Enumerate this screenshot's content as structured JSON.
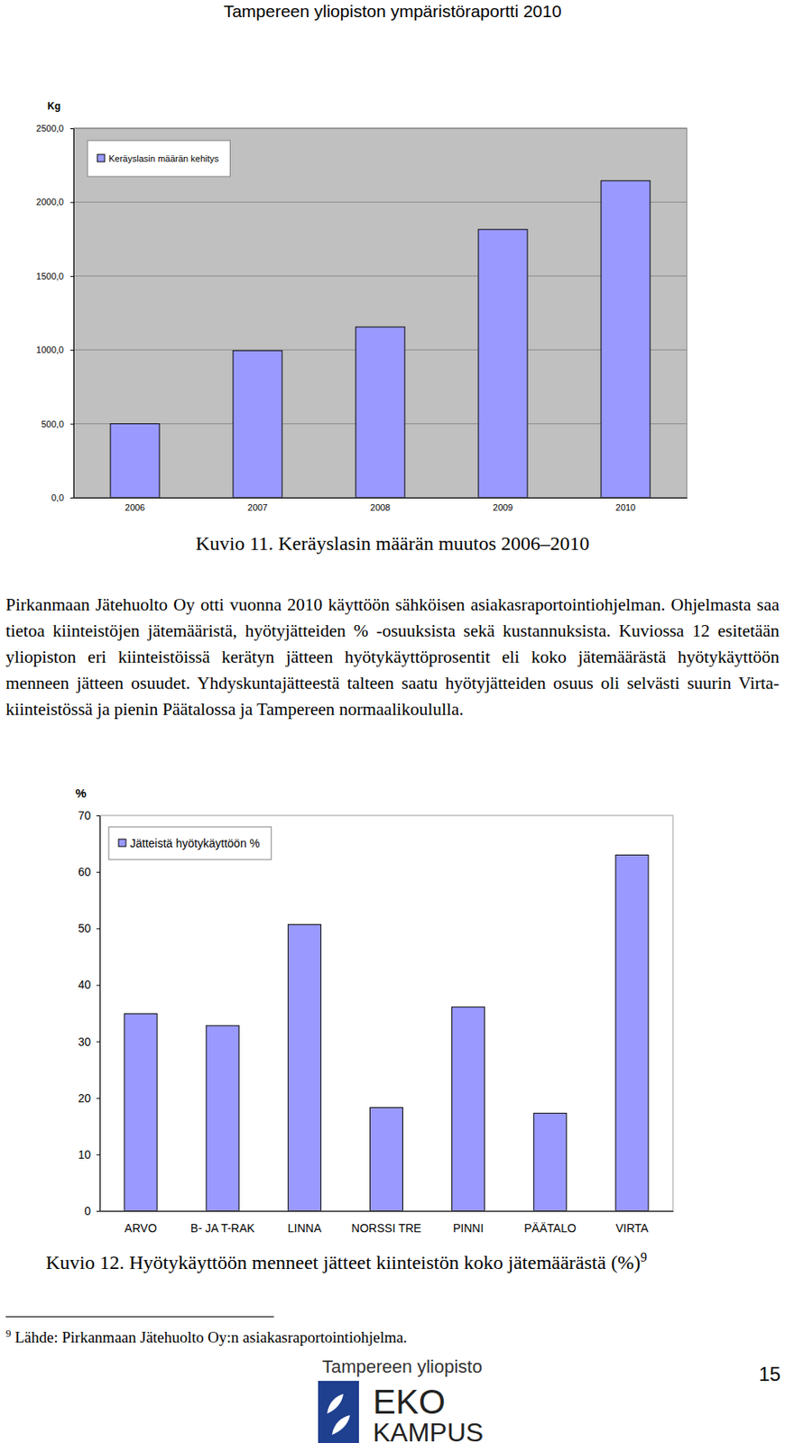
{
  "header": {
    "title": "Tampereen yliopiston ympäristöraportti 2010"
  },
  "chart_data": [
    {
      "type": "bar",
      "y_label": "Kg",
      "categories": [
        "2006",
        "2007",
        "2008",
        "2009",
        "2010"
      ],
      "series": [
        {
          "name": "Keräyslasin määrän kehitys",
          "color": "#9999ff",
          "values": [
            500,
            995,
            1155,
            1815,
            2145
          ]
        }
      ],
      "ylim": [
        0,
        2500
      ],
      "yticks": [
        {
          "value": 0,
          "label": "0,0"
        },
        {
          "value": 500,
          "label": "500,0"
        },
        {
          "value": 1000,
          "label": "1000,0"
        },
        {
          "value": 1500,
          "label": "1500,0"
        },
        {
          "value": 2000,
          "label": "2000,0"
        },
        {
          "value": 2500,
          "label": "2500,0"
        }
      ],
      "grid": true,
      "legend": "top-left"
    },
    {
      "type": "bar",
      "y_label": "%",
      "categories": [
        "ARVO",
        "B- JA T-RAK",
        "LINNA",
        "NORSSI TRE",
        "PINNI",
        "PÄÄTALO",
        "VIRTA"
      ],
      "series": [
        {
          "name": "Jätteistä hyötykäyttöön %",
          "color": "#9999ff",
          "values": [
            34.9,
            32.8,
            50.7,
            18.3,
            36.1,
            17.3,
            63.0
          ]
        }
      ],
      "ylim": [
        0,
        70
      ],
      "yticks": [
        0,
        10,
        20,
        30,
        40,
        50,
        60,
        70
      ],
      "grid": false,
      "legend": "top-left"
    }
  ],
  "captions": [
    {
      "text": "Kuvio 11. Keräyslasin määrän muutos 2006–2010"
    },
    {
      "text": "Kuvio 12. Hyötykäyttöön menneet jätteet kiinteistön koko jätemäärästä (%)",
      "note_ref": "9"
    }
  ],
  "paragraph": "Pirkanmaan Jätehuolto Oy otti vuonna 2010 käyttöön sähköisen asiakasraportointiohjelman. Ohjelmasta saa tietoa kiinteistöjen jätemääristä, hyötyjätteiden % -osuuksista sekä kustannuksista. Kuviossa 12 esitetään yliopiston eri kiinteistöissä kerätyn jätteen hyötykäyttöprosentit eli koko jätemäärästä hyötykäyttöön menneen jätteen osuudet. Yhdyskuntajätteestä talteen saatu hyötyjätteiden osuus oli selvästi suurin Virta-kiinteistössä ja pienin Päätalossa ja Tampereen normaalikoululla.",
  "footnote": {
    "ref": "9",
    "text": "Lähde: Pirkanmaan Jätehuolto Oy:n asiakasraportointiohjelma."
  },
  "footer": {
    "logo_top": "Tampereen yliopisto",
    "logo_lines": [
      "EKO",
      "KAMPUS"
    ],
    "page_number": "15"
  }
}
